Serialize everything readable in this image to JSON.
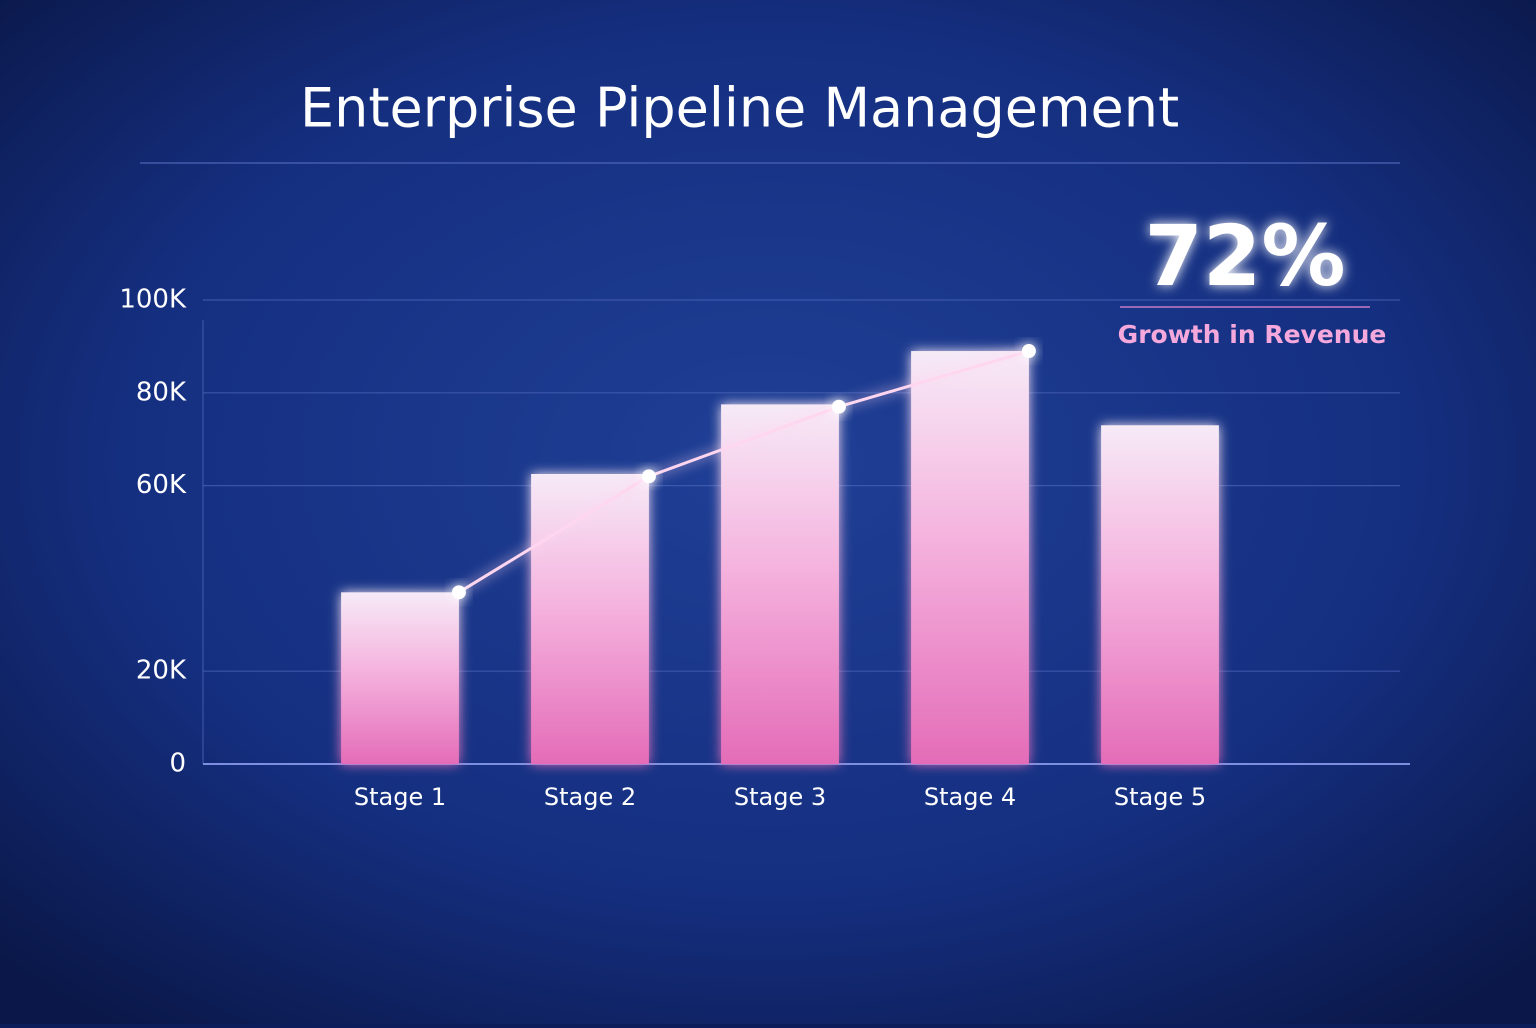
{
  "chart_data": {
    "type": "bar",
    "title": "Enterprise Pipeline Management",
    "categories": [
      "Stage 1",
      "Stage 2",
      "Stage 3",
      "Stage 4",
      "Stage 5"
    ],
    "series": [
      {
        "type": "bar",
        "color": "#e46cb8",
        "values": [
          37000,
          62500,
          77500,
          89000,
          73000
        ]
      },
      {
        "type": "line",
        "color": "#ffd6f0",
        "values": [
          37000,
          62000,
          77000,
          89000,
          null
        ]
      }
    ],
    "ylim": [
      0,
      100000
    ],
    "yticks": [
      0,
      {
        "value": 20000,
        "label": "20K"
      },
      {
        "value": 60000,
        "label": "60K"
      },
      {
        "value": 80000,
        "label": "80K"
      },
      {
        "value": 100000,
        "label": "100K"
      }
    ],
    "grid": true,
    "annotation": {
      "value": "72%",
      "text": "Growth in Revenue"
    }
  }
}
